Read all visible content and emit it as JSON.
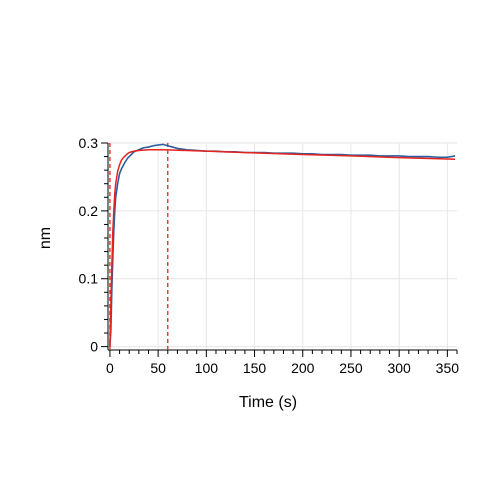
{
  "chart_data": {
    "type": "line",
    "title": "",
    "xlabel": "Time (s)",
    "ylabel": "nm",
    "xlim": [
      -2,
      360
    ],
    "ylim": [
      -0.005,
      0.3
    ],
    "x_ticks": [
      0,
      50,
      100,
      150,
      200,
      250,
      300,
      350
    ],
    "x_tick_labels": [
      "0",
      "50",
      "100",
      "150",
      "200",
      "250",
      "300",
      "350"
    ],
    "y_ticks": [
      0,
      0.1,
      0.2,
      0.3
    ],
    "y_tick_labels": [
      "0",
      "0.1",
      "0.2",
      "0.3"
    ],
    "grid": true,
    "legend": "none",
    "series": [
      {
        "color": "#2a5fa0",
        "style": "solid",
        "x": [
          0,
          1,
          2,
          3,
          4,
          5,
          6,
          8,
          10,
          12,
          15,
          18,
          20,
          25,
          30,
          35,
          40,
          45,
          50,
          55,
          60,
          65,
          70,
          80,
          90,
          100,
          110,
          120,
          130,
          140,
          150,
          160,
          170,
          180,
          190,
          200,
          210,
          220,
          230,
          240,
          250,
          260,
          270,
          280,
          290,
          300,
          310,
          320,
          330,
          340,
          350,
          358
        ],
        "y": [
          0.0,
          0.025,
          0.085,
          0.13,
          0.17,
          0.2,
          0.22,
          0.24,
          0.255,
          0.262,
          0.27,
          0.277,
          0.28,
          0.287,
          0.29,
          0.293,
          0.294,
          0.296,
          0.297,
          0.298,
          0.296,
          0.294,
          0.292,
          0.29,
          0.289,
          0.288,
          0.288,
          0.287,
          0.287,
          0.286,
          0.286,
          0.286,
          0.285,
          0.285,
          0.285,
          0.284,
          0.284,
          0.283,
          0.283,
          0.283,
          0.282,
          0.282,
          0.282,
          0.281,
          0.281,
          0.281,
          0.28,
          0.28,
          0.28,
          0.279,
          0.279,
          0.281
        ]
      },
      {
        "color": "#e8221c",
        "style": "solid",
        "x": [
          0,
          1,
          2,
          3,
          4,
          5,
          6,
          8,
          10,
          12,
          15,
          18,
          20,
          25,
          30,
          35,
          40,
          50,
          60,
          70,
          80,
          100,
          120,
          150,
          180,
          200,
          250,
          300,
          350,
          358
        ],
        "y": [
          0.0,
          0.06,
          0.12,
          0.17,
          0.2,
          0.225,
          0.24,
          0.258,
          0.268,
          0.275,
          0.28,
          0.284,
          0.286,
          0.288,
          0.289,
          0.2895,
          0.29,
          0.29,
          0.2898,
          0.2893,
          0.289,
          0.288,
          0.287,
          0.2855,
          0.284,
          0.283,
          0.281,
          0.2785,
          0.2765,
          0.276
        ]
      }
    ],
    "annotations": [
      {
        "type": "vertical-dashed-line",
        "x": 60,
        "color": "#e8221c"
      },
      {
        "type": "vertical-dashed-line",
        "x": 0,
        "color": "#e8221c"
      }
    ]
  }
}
